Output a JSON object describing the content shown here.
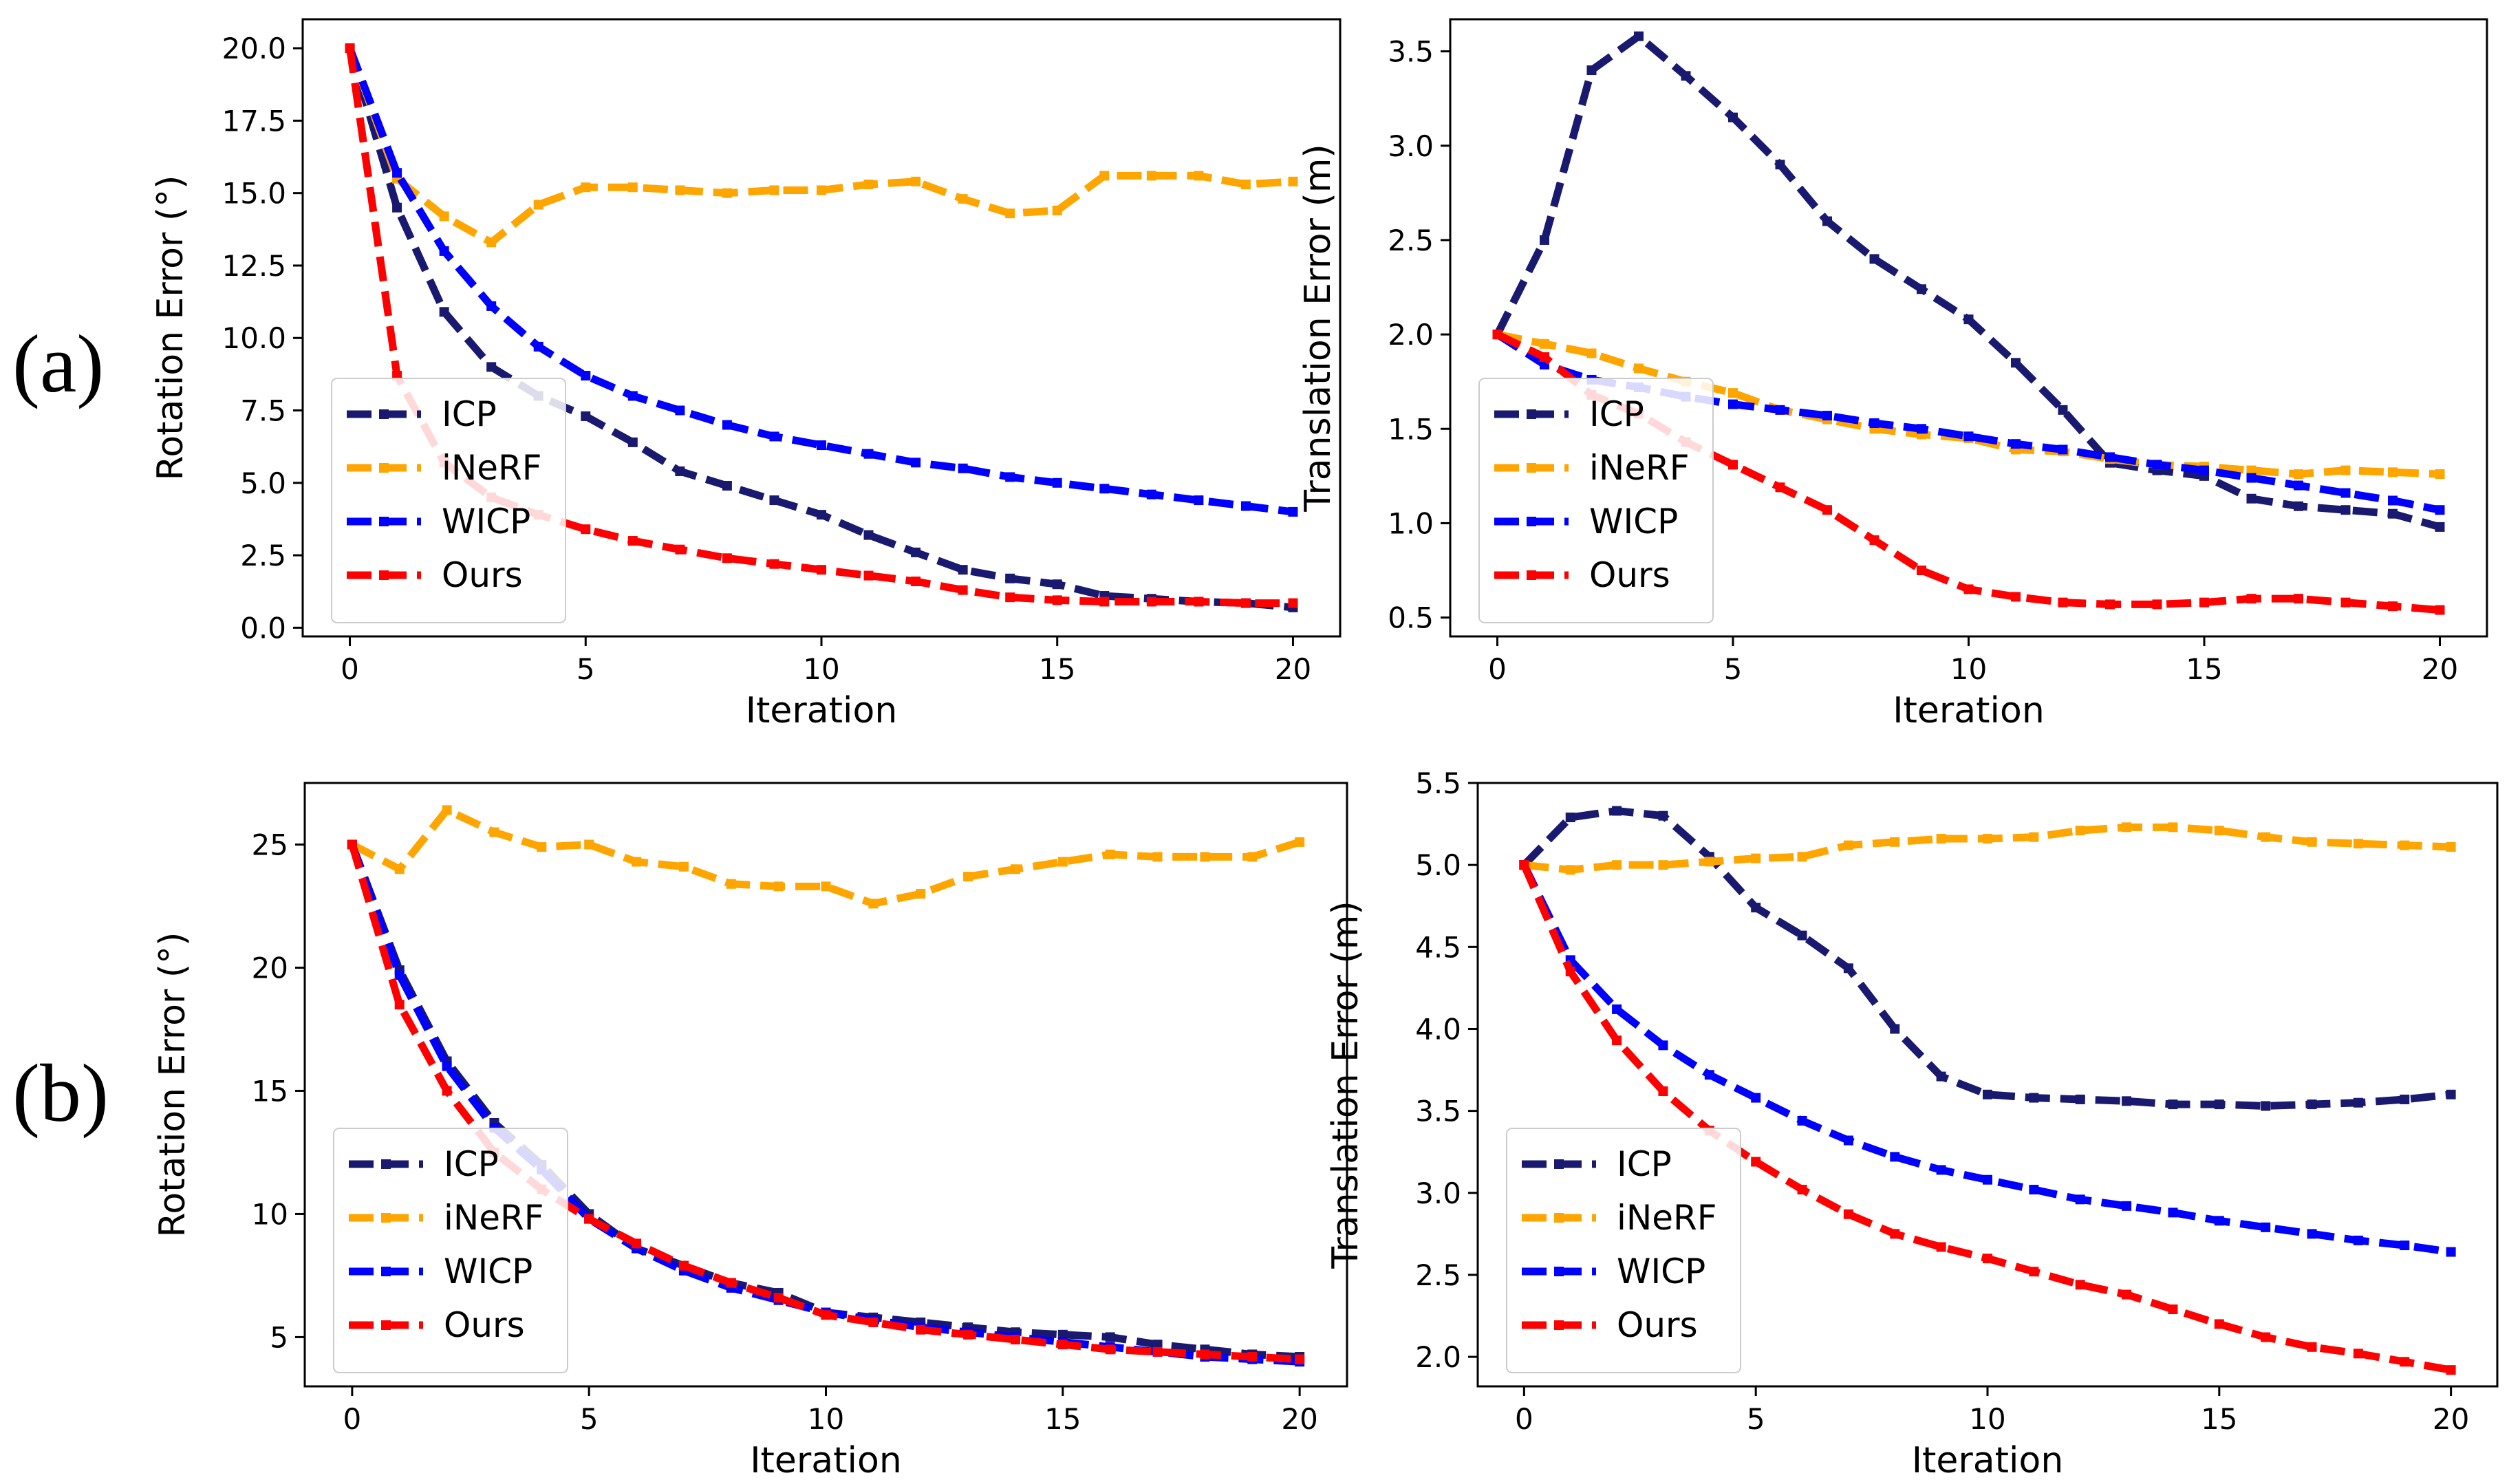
{
  "row_labels": [
    "(a)",
    "(b)"
  ],
  "colors": {
    "ICP": "#191970",
    "iNeRF": "#FFA500",
    "WICP": "#0000FF",
    "Ours": "#FF0000"
  },
  "chart_data": [
    {
      "id": "a-rotation",
      "type": "line",
      "xlabel": "Iteration",
      "ylabel": "Rotation Error (°)",
      "xlim": [
        -1,
        21
      ],
      "ylim": [
        -0.3,
        21
      ],
      "xticks": [
        0,
        5,
        10,
        15,
        20
      ],
      "xtick_labels": [
        "0",
        "5",
        "10",
        "15",
        "20"
      ],
      "yticks": [
        0,
        2.5,
        5,
        7.5,
        10,
        12.5,
        15,
        17.5,
        20
      ],
      "ytick_labels": [
        "0.0",
        "2.5",
        "5.0",
        "7.5",
        "10.0",
        "12.5",
        "15.0",
        "17.5",
        "20.0"
      ],
      "legend_position": "lower-left",
      "x": [
        0,
        1,
        2,
        3,
        4,
        5,
        6,
        7,
        8,
        9,
        10,
        11,
        12,
        13,
        14,
        15,
        16,
        17,
        18,
        19,
        20
      ],
      "series": [
        {
          "name": "ICP",
          "values": [
            20.0,
            14.5,
            10.9,
            9.0,
            8.0,
            7.3,
            6.4,
            5.4,
            4.9,
            4.4,
            3.9,
            3.2,
            2.6,
            2.0,
            1.7,
            1.5,
            1.1,
            1.0,
            0.9,
            0.85,
            0.7
          ]
        },
        {
          "name": "iNeRF",
          "values": [
            20.0,
            15.5,
            14.2,
            13.3,
            14.6,
            15.2,
            15.2,
            15.1,
            15.0,
            15.1,
            15.1,
            15.3,
            15.4,
            14.8,
            14.3,
            14.4,
            15.6,
            15.6,
            15.6,
            15.3,
            15.4
          ]
        },
        {
          "name": "WICP",
          "values": [
            20.0,
            15.7,
            13.0,
            11.1,
            9.7,
            8.7,
            8.0,
            7.5,
            7.0,
            6.6,
            6.3,
            6.0,
            5.7,
            5.5,
            5.2,
            5.0,
            4.8,
            4.6,
            4.4,
            4.2,
            4.0
          ]
        },
        {
          "name": "Ours",
          "values": [
            20.0,
            8.7,
            5.7,
            4.5,
            3.9,
            3.4,
            3.0,
            2.7,
            2.4,
            2.2,
            2.0,
            1.8,
            1.6,
            1.3,
            1.05,
            0.95,
            0.9,
            0.9,
            0.9,
            0.85,
            0.85
          ]
        }
      ]
    },
    {
      "id": "a-translation",
      "type": "line",
      "xlabel": "Iteration",
      "ylabel": "Translation Error (m)",
      "xlim": [
        -1,
        21
      ],
      "ylim": [
        0.4,
        3.67
      ],
      "xticks": [
        0,
        5,
        10,
        15,
        20
      ],
      "xtick_labels": [
        "0",
        "5",
        "10",
        "15",
        "20"
      ],
      "yticks": [
        0.5,
        1.0,
        1.5,
        2.0,
        2.5,
        3.0,
        3.5
      ],
      "ytick_labels": [
        "0.5",
        "1.0",
        "1.5",
        "2.0",
        "2.5",
        "3.0",
        "3.5"
      ],
      "legend_position": "lower-left",
      "x": [
        0,
        1,
        2,
        3,
        4,
        5,
        6,
        7,
        8,
        9,
        10,
        11,
        12,
        13,
        14,
        15,
        16,
        17,
        18,
        19,
        20
      ],
      "series": [
        {
          "name": "ICP",
          "values": [
            2.0,
            2.5,
            3.4,
            3.58,
            3.37,
            3.15,
            2.9,
            2.6,
            2.4,
            2.24,
            2.08,
            1.85,
            1.6,
            1.32,
            1.28,
            1.25,
            1.13,
            1.09,
            1.07,
            1.05,
            0.98
          ]
        },
        {
          "name": "iNeRF",
          "values": [
            2.0,
            1.95,
            1.9,
            1.82,
            1.75,
            1.69,
            1.6,
            1.55,
            1.5,
            1.47,
            1.45,
            1.39,
            1.38,
            1.34,
            1.31,
            1.3,
            1.28,
            1.26,
            1.28,
            1.27,
            1.26
          ]
        },
        {
          "name": "WICP",
          "values": [
            2.0,
            1.84,
            1.76,
            1.72,
            1.67,
            1.63,
            1.6,
            1.57,
            1.53,
            1.5,
            1.46,
            1.42,
            1.39,
            1.35,
            1.31,
            1.28,
            1.24,
            1.2,
            1.16,
            1.12,
            1.07
          ]
        },
        {
          "name": "Ours",
          "values": [
            2.0,
            1.88,
            1.68,
            1.58,
            1.43,
            1.31,
            1.19,
            1.07,
            0.91,
            0.75,
            0.65,
            0.61,
            0.58,
            0.57,
            0.57,
            0.58,
            0.6,
            0.6,
            0.58,
            0.56,
            0.54
          ]
        }
      ]
    },
    {
      "id": "b-rotation",
      "type": "line",
      "xlabel": "Iteration",
      "ylabel": "Rotation Error (°)",
      "xlim": [
        -1,
        21
      ],
      "ylim": [
        3,
        27.5
      ],
      "xticks": [
        0,
        5,
        10,
        15,
        20
      ],
      "xtick_labels": [
        "0",
        "5",
        "10",
        "15",
        "20"
      ],
      "yticks": [
        5,
        10,
        15,
        20,
        25
      ],
      "ytick_labels": [
        "5",
        "10",
        "15",
        "20",
        "25"
      ],
      "legend_position": "lower-left",
      "x": [
        0,
        1,
        2,
        3,
        4,
        5,
        6,
        7,
        8,
        9,
        10,
        11,
        12,
        13,
        14,
        15,
        16,
        17,
        18,
        19,
        20
      ],
      "series": [
        {
          "name": "ICP",
          "values": [
            25.0,
            19.9,
            16.2,
            13.7,
            12.0,
            10.0,
            8.6,
            7.9,
            7.2,
            6.8,
            6.0,
            5.8,
            5.6,
            5.4,
            5.2,
            5.1,
            5.0,
            4.7,
            4.5,
            4.3,
            4.2
          ]
        },
        {
          "name": "iNeRF",
          "values": [
            25.0,
            24.0,
            26.4,
            25.5,
            24.9,
            25.0,
            24.3,
            24.1,
            23.4,
            23.3,
            23.3,
            22.6,
            23.0,
            23.7,
            24.0,
            24.3,
            24.6,
            24.5,
            24.5,
            24.5,
            25.1
          ]
        },
        {
          "name": "WICP",
          "values": [
            25.0,
            19.7,
            16.0,
            13.5,
            11.8,
            9.8,
            8.6,
            7.7,
            7.0,
            6.5,
            6.0,
            5.7,
            5.4,
            5.2,
            5.0,
            4.8,
            4.6,
            4.4,
            4.2,
            4.1,
            4.0
          ]
        },
        {
          "name": "Ours",
          "values": [
            25.0,
            18.5,
            15.0,
            12.5,
            11.0,
            9.8,
            8.8,
            7.9,
            7.2,
            6.6,
            5.9,
            5.6,
            5.3,
            5.1,
            4.9,
            4.7,
            4.5,
            4.4,
            4.3,
            4.2,
            4.1
          ]
        }
      ]
    },
    {
      "id": "b-translation",
      "type": "line",
      "xlabel": "Iteration",
      "ylabel": "Translation Error (m)",
      "xlim": [
        -1,
        21
      ],
      "ylim": [
        1.82,
        5.5
      ],
      "xticks": [
        0,
        5,
        10,
        15,
        20
      ],
      "xtick_labels": [
        "0",
        "5",
        "10",
        "15",
        "20"
      ],
      "yticks": [
        2.0,
        2.5,
        3.0,
        3.5,
        4.0,
        4.5,
        5.0,
        5.5
      ],
      "ytick_labels": [
        "2.0",
        "2.5",
        "3.0",
        "3.5",
        "4.0",
        "4.5",
        "5.0",
        "5.5"
      ],
      "legend_position": "lower-left",
      "x": [
        0,
        1,
        2,
        3,
        4,
        5,
        6,
        7,
        8,
        9,
        10,
        11,
        12,
        13,
        14,
        15,
        16,
        17,
        18,
        19,
        20
      ],
      "series": [
        {
          "name": "ICP",
          "values": [
            5.0,
            5.29,
            5.33,
            5.3,
            5.05,
            4.74,
            4.57,
            4.37,
            4.0,
            3.71,
            3.6,
            3.58,
            3.57,
            3.56,
            3.54,
            3.54,
            3.53,
            3.54,
            3.55,
            3.57,
            3.6
          ]
        },
        {
          "name": "iNeRF",
          "values": [
            5.0,
            4.97,
            5.0,
            5.0,
            5.02,
            5.04,
            5.05,
            5.12,
            5.14,
            5.16,
            5.16,
            5.17,
            5.21,
            5.23,
            5.23,
            5.21,
            5.17,
            5.14,
            5.13,
            5.12,
            5.11
          ]
        },
        {
          "name": "WICP",
          "values": [
            5.0,
            4.42,
            4.12,
            3.9,
            3.72,
            3.58,
            3.44,
            3.32,
            3.22,
            3.14,
            3.08,
            3.02,
            2.96,
            2.92,
            2.88,
            2.83,
            2.79,
            2.75,
            2.71,
            2.68,
            2.64
          ]
        },
        {
          "name": "Ours",
          "values": [
            5.0,
            4.35,
            3.93,
            3.62,
            3.38,
            3.19,
            3.02,
            2.87,
            2.75,
            2.67,
            2.6,
            2.52,
            2.44,
            2.38,
            2.29,
            2.2,
            2.12,
            2.06,
            2.02,
            1.97,
            1.92
          ]
        }
      ]
    }
  ]
}
